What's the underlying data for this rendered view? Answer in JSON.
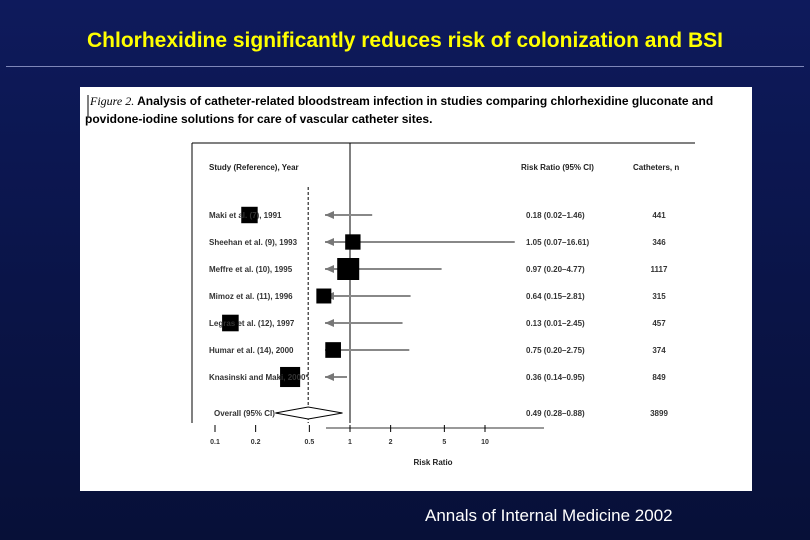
{
  "slide": {
    "title": "Chlorhexidine significantly reduces risk of colonization and BSI",
    "caption": "Annals of Internal Medicine 2002"
  },
  "figure": {
    "label": "Figure 2.",
    "caption_line1": " Analysis of catheter-related bloodstream infection in studies comparing chlorhexidine gluconate and",
    "caption_line2": "povidone-iodine solutions for care of vascular catheter sites."
  },
  "colors": {
    "background": "#0b1550",
    "title": "#ffff00",
    "marker": "#000000",
    "panel": "#ffffff"
  },
  "chart_data": {
    "type": "forest",
    "title": "",
    "xlabel": "Risk Ratio",
    "x_scale": "log",
    "xlim": [
      0.07,
      20
    ],
    "x_ticks": [
      0.1,
      0.2,
      0.5,
      1,
      2,
      5,
      10
    ],
    "x_tick_labels": [
      "0.1",
      "0.2",
      "0.5",
      "1",
      "2",
      "5",
      "10"
    ],
    "reference_line": 1,
    "pooled_reference_line": 0.49,
    "headers": {
      "study": "Study (Reference), Year",
      "ratio": "Risk Ratio (95% CI)",
      "n": "Catheters, n"
    },
    "studies": [
      {
        "label": "Maki et al. (7), 1991",
        "rr": 0.18,
        "lo": 0.02,
        "hi": 1.46,
        "ci_text": "0.18 (0.02–1.46)",
        "n": "441",
        "n_value": 441
      },
      {
        "label": "Sheehan et al. (9), 1993",
        "rr": 1.05,
        "lo": 0.07,
        "hi": 16.61,
        "ci_text": "1.05 (0.07–16.61)",
        "n": "346",
        "n_value": 346
      },
      {
        "label": "Meffre et al. (10), 1995",
        "rr": 0.97,
        "lo": 0.2,
        "hi": 4.77,
        "ci_text": "0.97 (0.20–4.77)",
        "n": "1117",
        "n_value": 1117
      },
      {
        "label": "Mimoz et al. (11), 1996",
        "rr": 0.64,
        "lo": 0.15,
        "hi": 2.81,
        "ci_text": "0.64 (0.15–2.81)",
        "n": "315",
        "n_value": 315
      },
      {
        "label": "Legras et al. (12), 1997",
        "rr": 0.13,
        "lo": 0.01,
        "hi": 2.45,
        "ci_text": "0.13 (0.01–2.45)",
        "n": "457",
        "n_value": 457
      },
      {
        "label": "Humar et al. (14), 2000",
        "rr": 0.75,
        "lo": 0.2,
        "hi": 2.75,
        "ci_text": "0.75 (0.20–2.75)",
        "n": "374",
        "n_value": 374
      },
      {
        "label": "Knasinski and Maki, 2000*",
        "rr": 0.36,
        "lo": 0.14,
        "hi": 0.95,
        "ci_text": "0.36 (0.14–0.95)",
        "n": "849",
        "n_value": 849
      }
    ],
    "overall": {
      "label": "Overall (95% CI)",
      "rr": 0.49,
      "lo": 0.28,
      "hi": 0.88,
      "ci_text": "0.49 (0.28–0.88)",
      "n": "3899"
    }
  }
}
